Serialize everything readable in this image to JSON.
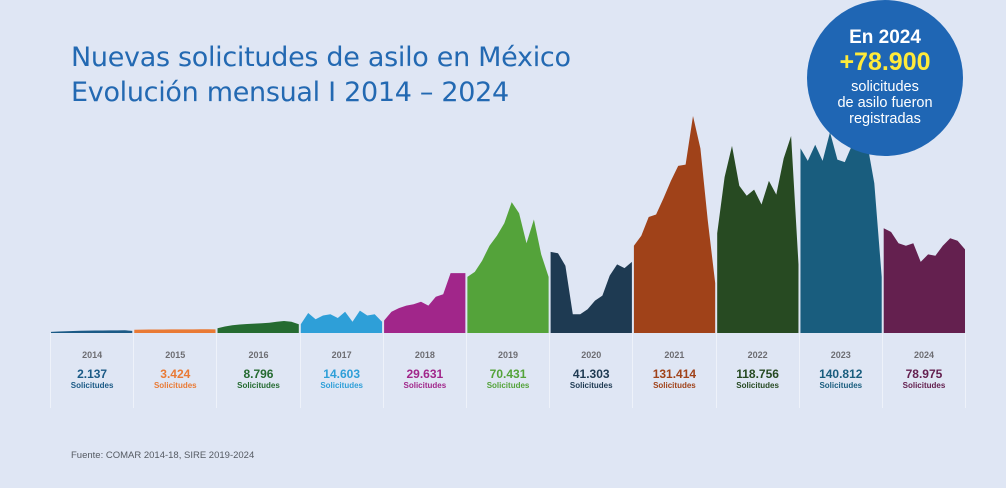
{
  "title": {
    "line1": "Nuevas solicitudes de asilo en México",
    "line2": "Evolución mensual I 2014 – 2024"
  },
  "badge": {
    "line1": "En 2024",
    "highlight": "+78.900",
    "line3": "solicitudes",
    "line4": "de asilo fueron",
    "line5": "registradas",
    "color": "#1f66b4",
    "highlight_color": "#ffea3a"
  },
  "source": "Fuente: COMAR 2014-18, SIRE 2019-2024",
  "chart_data": {
    "type": "area",
    "title": "Nuevas solicitudes de asilo en México — Evolución mensual 2014 – 2024",
    "xlabel": "",
    "ylabel": "",
    "grid": false,
    "legend": "none",
    "years": [
      {
        "year": "2014",
        "total": "2.137",
        "label": "Solicitudes",
        "color": "#1b5a86",
        "monthly": [
          90,
          120,
          140,
          160,
          180,
          190,
          200,
          200,
          210,
          210,
          220,
          170
        ]
      },
      {
        "year": "2015",
        "total": "3.424",
        "label": "Solicitudes",
        "color": "#e97a35",
        "monthly": [
          260,
          270,
          280,
          280,
          280,
          290,
          290,
          290,
          290,
          300,
          300,
          290
        ]
      },
      {
        "year": "2016",
        "total": "8.796",
        "label": "Solicitudes",
        "color": "#256b31",
        "monthly": [
          380,
          520,
          620,
          680,
          720,
          750,
          780,
          820,
          900,
          960,
          900,
          700
        ]
      },
      {
        "year": "2017",
        "total": "14.603",
        "label": "Solicitudes",
        "color": "#2e9fd8",
        "monthly": [
          700,
          1600,
          1100,
          1400,
          1500,
          1200,
          1700,
          900,
          1800,
          1400,
          1500,
          900
        ]
      },
      {
        "year": "2018",
        "total": "29.631",
        "label": "Solicitudes",
        "color": "#a1268a",
        "monthly": [
          1000,
          1700,
          2000,
          2200,
          2300,
          2500,
          2200,
          2900,
          3100,
          4800,
          4800,
          4800
        ]
      },
      {
        "year": "2019",
        "total": "70.431",
        "label": "Solicitudes",
        "color": "#54a33a",
        "monthly": [
          4500,
          4900,
          5800,
          7000,
          7800,
          8800,
          10500,
          9600,
          7200,
          9100,
          6300,
          4500
        ]
      },
      {
        "year": "2020",
        "total": "41.303",
        "label": "Solicitudes",
        "color": "#1e3a52",
        "monthly": [
          6500,
          6400,
          5400,
          1500,
          1500,
          1900,
          2600,
          3000,
          4600,
          5500,
          5200,
          5700
        ]
      },
      {
        "year": "2021",
        "total": "131.414",
        "label": "Solicitudes",
        "color": "#a04219",
        "monthly": [
          7000,
          7800,
          9300,
          9500,
          10800,
          12200,
          13400,
          13500,
          17400,
          14800,
          9000,
          4000
        ]
      },
      {
        "year": "2022",
        "total": "118.756",
        "label": "Solicitudes",
        "color": "#274a22",
        "monthly": [
          8000,
          12500,
          15000,
          11800,
          11000,
          11500,
          10300,
          12200,
          11100,
          14000,
          15800,
          5500
        ]
      },
      {
        "year": "2023",
        "total": "140.812",
        "label": "Solicitudes",
        "color": "#195d7e",
        "monthly": [
          14800,
          13800,
          15100,
          13800,
          16100,
          13900,
          13700,
          15100,
          16100,
          15300,
          12000,
          4500
        ]
      },
      {
        "year": "2024",
        "total": "78.975",
        "label": "Solicitudes",
        "color": "#64204f",
        "monthly": [
          8400,
          8100,
          7200,
          7000,
          7200,
          5700,
          6300,
          6200,
          7000,
          7600,
          7400,
          6700
        ]
      }
    ],
    "ylim": [
      0,
      18000
    ]
  }
}
